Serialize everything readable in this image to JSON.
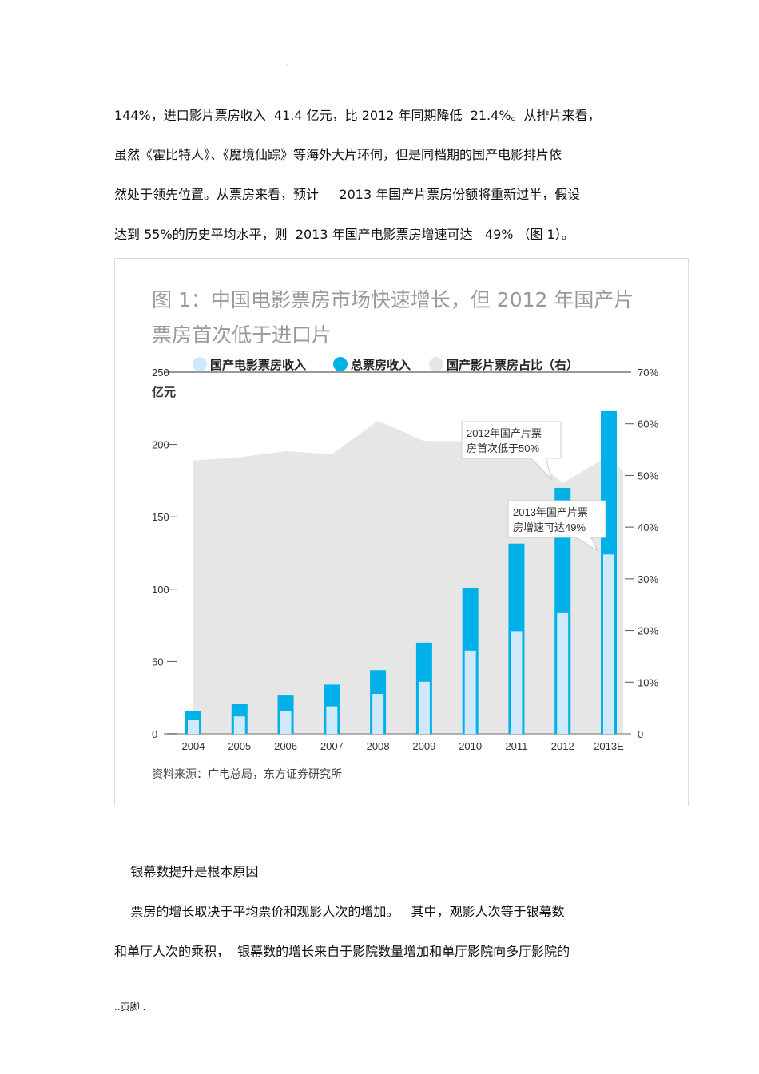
{
  "top_mark": ".",
  "paragraphs_top": [
    "144%，进口影片票房收入  41.4 亿元，比 2012 年同期降低  21.4%。从排片来看，",
    "虽然《霍比特人》、《魔境仙踪》等海外大片环伺，但是同档期的国产电影排片依",
    "然处于领先位置。从票房来看，预计     2013 年国产片票房份额将重新过半，假设",
    "达到 55%的历史平均水平，则  2013 年国产电影票房增速可达   49% （图 1）。"
  ],
  "chart_data": {
    "type": "bar",
    "title_lines": [
      "图 1：中国电影票房市场快速增长，但 2012 年国产片",
      "票房首次低于进口片"
    ],
    "categories": [
      "2004",
      "2005",
      "2006",
      "2007",
      "2008",
      "2009",
      "2010",
      "2011",
      "2012",
      "2013E"
    ],
    "series": [
      {
        "name": "国产电影票房收入",
        "values": [
          9.4,
          12,
          15.5,
          19,
          27.6,
          36,
          57.5,
          71,
          83.4,
          124
        ],
        "color": "#cfe9fa"
      },
      {
        "name": "总票房收入",
        "values": [
          16,
          20.4,
          27,
          34,
          44,
          63,
          101,
          131.5,
          170,
          223
        ],
        "color": "#00b0e8"
      },
      {
        "name": "国产影片票房占比（右）",
        "values": [
          52.9,
          53.5,
          54.7,
          54.1,
          60.6,
          56.7,
          56.6,
          56.3,
          48.5,
          53.8
        ],
        "color": "#e6e6e6",
        "axis": "right",
        "type": "area"
      }
    ],
    "ylabel": "亿元",
    "ylim": [
      0,
      250
    ],
    "yticks": [
      "0",
      "50",
      "100",
      "150",
      "200",
      "250"
    ],
    "y2lim": [
      0,
      70
    ],
    "y2ticks": [
      "0",
      "10%",
      "20%",
      "30%",
      "40%",
      "50%",
      "60%",
      "70%"
    ],
    "annotations": [
      {
        "lines": [
          "2012年国产片票",
          "房首次低于50%"
        ],
        "target": "2012"
      },
      {
        "lines": [
          "2013年国产片票",
          "房增速可达49%"
        ],
        "target": "2013E"
      }
    ],
    "source": "资料来源：广电总局，东方证券研究所",
    "legend": "top"
  },
  "paragraphs_bottom": [
    "    银幕数提升是根本原因",
    "    票房的增长取决于平均票价和观影人次的增加。   其中，观影人次等于银幕数",
    "和单厅人次的乘积，  银幕数的增长来自于影院数量增加和单厅影院向多厅影院的"
  ],
  "footer": "..页脚 ."
}
